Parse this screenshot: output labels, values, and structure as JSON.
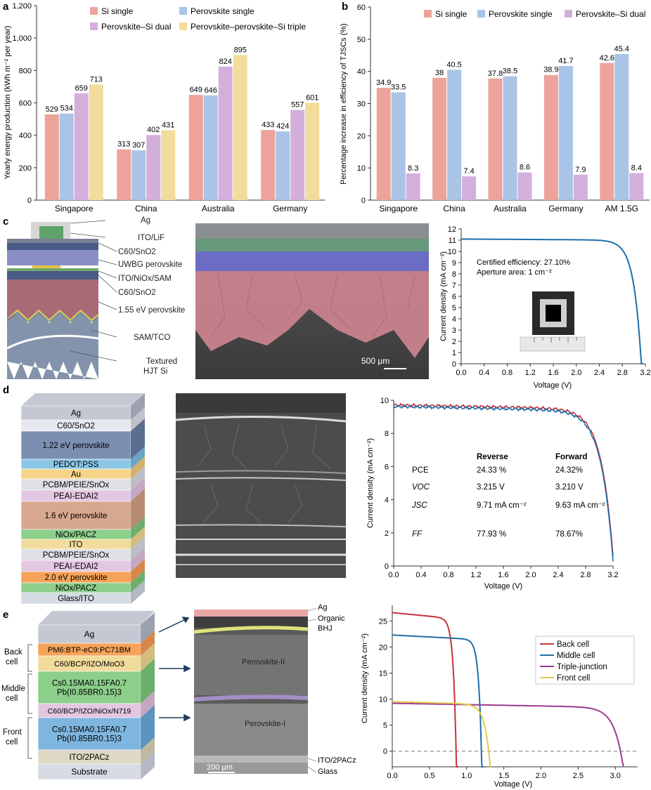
{
  "colors": {
    "si": "#eda39b",
    "pvk": "#a9c4e6",
    "dual": "#d3b0dc",
    "triple": "#f2dc9b",
    "back": "#c8323c",
    "middle": "#1f6fa8",
    "tj": "#9b3a93",
    "front": "#e2c84d",
    "rev": "#c8323c",
    "fwd": "#1f6fa8"
  },
  "panels": {
    "a": "a",
    "b": "b",
    "c": "c",
    "d": "d",
    "e": "e"
  },
  "chart_data": [
    {
      "id": "a",
      "type": "bar",
      "title": "",
      "ylabel": "Yearly energy production (kWh m⁻² per year)",
      "ylim": [
        0,
        1200
      ],
      "yticks": [
        "0",
        "200",
        "400",
        "600",
        "800",
        "1,000",
        "1,200"
      ],
      "categories": [
        "Singapore",
        "China",
        "Australia",
        "Germany"
      ],
      "series": [
        {
          "name": "Si single",
          "color": "si",
          "values": [
            529,
            313,
            649,
            433
          ]
        },
        {
          "name": "Perovskite single",
          "color": "pvk",
          "values": [
            534,
            307,
            646,
            424
          ]
        },
        {
          "name": "Perovskite–Si dual",
          "color": "dual",
          "values": [
            659,
            402,
            824,
            557
          ]
        },
        {
          "name": "Perovskite–perovskite–Si triple",
          "color": "triple",
          "values": [
            713,
            431,
            895,
            601
          ]
        }
      ]
    },
    {
      "id": "b",
      "type": "bar",
      "ylabel": "Percentage increase in efficiency of TJSCs (%)",
      "ylim": [
        0,
        60
      ],
      "yticks": [
        "0",
        "10",
        "20",
        "30",
        "40",
        "50",
        "60"
      ],
      "categories": [
        "Singapore",
        "China",
        "Australia",
        "Germany",
        "AM 1.5G"
      ],
      "series": [
        {
          "name": "Si single",
          "color": "si",
          "values": [
            34.9,
            38,
            37.8,
            38.9,
            42.6
          ]
        },
        {
          "name": "Perovskite single",
          "color": "pvk",
          "values": [
            33.5,
            40.5,
            38.5,
            41.7,
            45.4
          ]
        },
        {
          "name": "Perovskite–Si dual",
          "color": "dual",
          "values": [
            8.3,
            7.4,
            8.6,
            7.9,
            8.4
          ]
        }
      ]
    },
    {
      "id": "c",
      "type": "line",
      "xlabel": "Voltage (V)",
      "ylabel": "Current density (mA cm⁻²)",
      "xlim": [
        0,
        3.2
      ],
      "ylim": [
        0,
        12
      ],
      "xticks": [
        "0.0",
        "0.4",
        "0.8",
        "1.2",
        "1.6",
        "2.0",
        "2.4",
        "2.8",
        "3.2"
      ],
      "yticks": [
        "0",
        "1",
        "2",
        "3",
        "4",
        "5",
        "6",
        "7",
        "8",
        "9",
        "10",
        "11",
        "12"
      ],
      "annotations": [
        "Certified efficiency: 27.10%",
        "Aperture area: 1 cm⁻²"
      ],
      "series": [
        {
          "name": "J–V",
          "color": "fwd",
          "jsc": 11.1,
          "voc": 3.13,
          "n": 0.13,
          "droop": 0.1
        }
      ]
    },
    {
      "id": "d",
      "type": "line",
      "xlabel": "Voltage (V)",
      "ylabel": "Current density (mA cm⁻²)",
      "xlim": [
        0,
        3.2
      ],
      "ylim": [
        0,
        10
      ],
      "xticks": [
        "0.0",
        "0.4",
        "0.8",
        "1.2",
        "1.6",
        "2.0",
        "2.4",
        "2.8",
        "3.2"
      ],
      "yticks": [
        "0",
        "2",
        "4",
        "6",
        "8",
        "10"
      ],
      "series": [
        {
          "name": "Reverse",
          "color": "rev",
          "jsc": 9.71,
          "voc": 3.215,
          "n": 0.17,
          "droop": 0.25
        },
        {
          "name": "Forward",
          "color": "fwd",
          "jsc": 9.63,
          "voc": 3.21,
          "n": 0.17,
          "droop": 0.28
        }
      ],
      "table": {
        "headers": [
          "",
          "Reverse",
          "Forward"
        ],
        "rows": [
          [
            "PCE",
            "24.33 %",
            "24.32%"
          ],
          [
            "VOC",
            "3.215 V",
            "3.210 V"
          ],
          [
            "JSC",
            "9.71 mA cm⁻²",
            "9.63 mA cm⁻²"
          ],
          [
            "FF",
            "77.93 %",
            "78.67%"
          ]
        ]
      }
    },
    {
      "id": "e",
      "type": "line",
      "xlabel": "Voltage (V)",
      "ylabel": "Current density (mA cm⁻²)",
      "xlim": [
        0,
        3.3
      ],
      "ylim": [
        -3,
        28
      ],
      "xticks": [
        "0.0",
        "0.5",
        "1.0",
        "1.5",
        "2.0",
        "2.5",
        "3.0"
      ],
      "yticks": [
        "0",
        "5",
        "10",
        "15",
        "20",
        "25"
      ],
      "series": [
        {
          "name": "Back cell",
          "color": "back",
          "jsc": 26.6,
          "voc": 0.86,
          "n": 0.04,
          "droop": 1.2
        },
        {
          "name": "Middle cell",
          "color": "middle",
          "jsc": 22.3,
          "voc": 1.2,
          "n": 0.04,
          "droop": 0.9
        },
        {
          "name": "Triple-junction",
          "color": "tj",
          "jsc": 9.2,
          "voc": 3.08,
          "n": 0.12,
          "droop": 0.8
        },
        {
          "name": "Front cell",
          "color": "front",
          "jsc": 9.5,
          "voc": 1.3,
          "n": 0.07,
          "droop": 0.5
        }
      ]
    }
  ],
  "panel_c_layers": [
    "Ag",
    "ITO/LiF",
    "C60/SnO2",
    "UWBG perovskite",
    "ITO/NiOx/SAM",
    "C60/SnO2",
    "1.55 eV perovskite",
    "SAM/TCO",
    "Textured",
    "HJT Si"
  ],
  "panel_c_scale": "500 μm",
  "panel_d_layers": [
    "Ag",
    "C60/SnO2",
    "1.22 eV perovskite",
    "PEDOT:PSS",
    "Au",
    "PCBM/PEIE/SnOx",
    "PEAI-EDAI2",
    "1.6 eV perovskite",
    "NiOx/PACZ",
    "ITO",
    "PCBM/PEIE/SnOx",
    "PEAI-EDAI2",
    "2.0 eV perovskite",
    "NiOx/PACZ",
    "Glass/ITO"
  ],
  "panel_e_layers": [
    "Ag",
    "PM6:BTP-eC9:PC71BM",
    "C60/BCP/IZO/MoO3",
    "Cs0.15MA0.15FA0.7",
    "Pb(I0.85BR0.15)3",
    "C60/BCP/IZO/NiOx/N719",
    "Cs0.15MA0.15FA0.7",
    "Pb(I0.85BR0.15)3",
    "ITO/2PACz",
    "Substrate"
  ],
  "panel_e_groups": [
    "Back",
    "cell",
    "Middle",
    "cell",
    "Front",
    "cell"
  ],
  "panel_e_sem": [
    "Ag",
    "Organic",
    "BHJ",
    "Perovskite-II",
    "Perovskite-I",
    "ITO/2PACz",
    "Glass",
    "200 μm"
  ]
}
